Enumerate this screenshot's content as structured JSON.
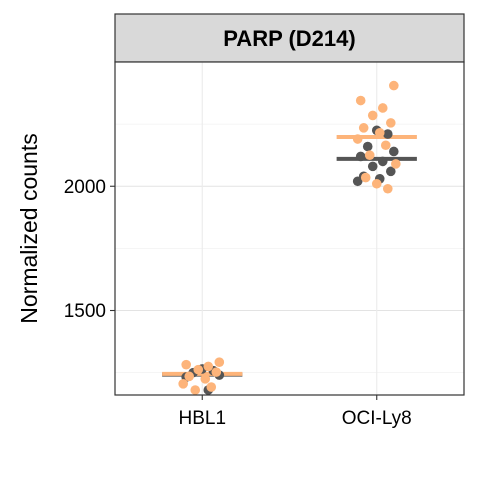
{
  "chart_data": {
    "type": "scatter",
    "title": "PARP (D214)",
    "xlabel": "",
    "ylabel": "Normalized counts",
    "categories": [
      "HBL1",
      "OCI-Ly8"
    ],
    "yticks": [
      1500,
      2000
    ],
    "ylim": [
      1160,
      2500
    ],
    "grid": true,
    "legend": "none",
    "series": [
      {
        "color": "#555555",
        "points": [
          {
            "category": "HBL1",
            "y": 1265
          },
          {
            "category": "HBL1",
            "y": 1258
          },
          {
            "category": "HBL1",
            "y": 1250
          },
          {
            "category": "HBL1",
            "y": 1240
          },
          {
            "category": "HBL1",
            "y": 1232
          },
          {
            "category": "HBL1",
            "y": 1180
          },
          {
            "category": "OCI-Ly8",
            "y": 2225
          },
          {
            "category": "OCI-Ly8",
            "y": 2210
          },
          {
            "category": "OCI-Ly8",
            "y": 2160
          },
          {
            "category": "OCI-Ly8",
            "y": 2140
          },
          {
            "category": "OCI-Ly8",
            "y": 2120
          },
          {
            "category": "OCI-Ly8",
            "y": 2100
          },
          {
            "category": "OCI-Ly8",
            "y": 2080
          },
          {
            "category": "OCI-Ly8",
            "y": 2060
          },
          {
            "category": "OCI-Ly8",
            "y": 2040
          },
          {
            "category": "OCI-Ly8",
            "y": 2030
          },
          {
            "category": "OCI-Ly8",
            "y": 2020
          }
        ],
        "means": [
          {
            "category": "HBL1",
            "y": 1242
          },
          {
            "category": "OCI-Ly8",
            "y": 2110
          }
        ]
      },
      {
        "color": "#FDB47A",
        "points": [
          {
            "category": "HBL1",
            "y": 1292
          },
          {
            "category": "HBL1",
            "y": 1282
          },
          {
            "category": "HBL1",
            "y": 1275
          },
          {
            "category": "HBL1",
            "y": 1262
          },
          {
            "category": "HBL1",
            "y": 1252
          },
          {
            "category": "HBL1",
            "y": 1235
          },
          {
            "category": "HBL1",
            "y": 1225
          },
          {
            "category": "HBL1",
            "y": 1205
          },
          {
            "category": "HBL1",
            "y": 1192
          },
          {
            "category": "HBL1",
            "y": 1180
          },
          {
            "category": "OCI-Ly8",
            "y": 2405
          },
          {
            "category": "OCI-Ly8",
            "y": 2345
          },
          {
            "category": "OCI-Ly8",
            "y": 2315
          },
          {
            "category": "OCI-Ly8",
            "y": 2285
          },
          {
            "category": "OCI-Ly8",
            "y": 2255
          },
          {
            "category": "OCI-Ly8",
            "y": 2235
          },
          {
            "category": "OCI-Ly8",
            "y": 2215
          },
          {
            "category": "OCI-Ly8",
            "y": 2190
          },
          {
            "category": "OCI-Ly8",
            "y": 2165
          },
          {
            "category": "OCI-Ly8",
            "y": 2125
          },
          {
            "category": "OCI-Ly8",
            "y": 2090
          },
          {
            "category": "OCI-Ly8",
            "y": 2035
          },
          {
            "category": "OCI-Ly8",
            "y": 2010
          },
          {
            "category": "OCI-Ly8",
            "y": 1990
          }
        ],
        "means": [
          {
            "category": "HBL1",
            "y": 1245
          },
          {
            "category": "OCI-Ly8",
            "y": 2198
          }
        ]
      }
    ]
  }
}
